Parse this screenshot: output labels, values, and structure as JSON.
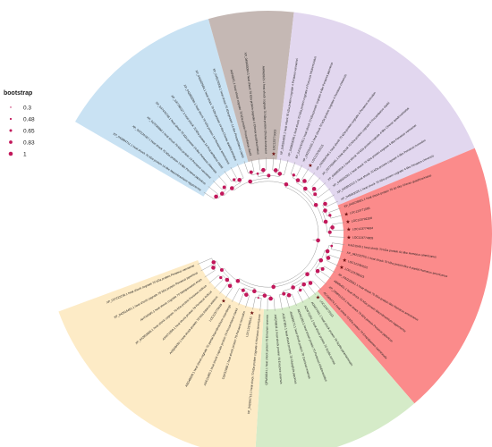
{
  "legend": {
    "title": "bootstrap",
    "items": [
      {
        "label": "0.3",
        "value": 0.3
      },
      {
        "label": "0.48",
        "value": 0.48
      },
      {
        "label": "0.65",
        "value": 0.65
      },
      {
        "label": "0.83",
        "value": 0.83
      },
      {
        "label": "1",
        "value": 1
      }
    ]
  },
  "colors": {
    "clade_blue": "#c9e2f3",
    "clade_taupe": "#c5b8b4",
    "clade_lavender": "#e2d7ef",
    "clade_red": "#fb8b8b",
    "clade_green": "#d5ebc8",
    "clade_yellow": "#fdebc6",
    "node": "#c2185b",
    "branch": "#9a9a9a",
    "star": "#6b0f0f"
  },
  "clades": [
    {
      "name": "blue",
      "color_key": "clade_blue"
    },
    {
      "name": "taupe",
      "color_key": "clade_taupe"
    },
    {
      "name": "lavender",
      "color_key": "clade_lavender"
    },
    {
      "name": "red",
      "color_key": "clade_red"
    },
    {
      "name": "green",
      "color_key": "clade_green"
    },
    {
      "name": "yellow",
      "color_key": "clade_yellow"
    }
  ],
  "tips": [
    {
      "label": "XP_042894711.1 heat shock 70 kDa protein 14-like Macrobrachium nipponense",
      "clade": "blue"
    },
    {
      "label": "XP_042224187.1 heat shock 70 kDa protein 14-like Penaeus japonicus",
      "clade": "blue"
    },
    {
      "label": "XP_027230890.1 heat shock 70 kDa protein 14 Penaeus vannamei",
      "clade": "blue"
    },
    {
      "label": "XP_047476748.1 heat shock 70 kDa protein 14-like Penaeus chinensis",
      "clade": "blue"
    },
    {
      "label": "XP_037796027.1 heat shock 70 kDa protein 14 Procambarus clarkii",
      "clade": "blue"
    },
    {
      "label": "XP_042882280.1 heat shock 70 kDa protein 14 Homarus americanus",
      "clade": "blue"
    },
    {
      "label": "XP_045602684.1 heat shock 70 kDa protein 14-like Cherax quadricarinatus",
      "clade": "blue"
    },
    {
      "label": "XP_045576009.1 heat shock 70 kDa protein 14-like Procambarus clarkii",
      "clade": "blue"
    },
    {
      "label": "AAN6651.1 heat shock cognate 70 kDa protein Procambarus clarkii",
      "clade": "taupe"
    },
    {
      "label": "XP_045603094.1 heat shock 70 kDa protein cognate 4 Cherax quadricarinatus",
      "clade": "taupe"
    },
    {
      "label": "AAW69621.1 heat shock cognate 70 kDa protein Cherax destructor",
      "clade": "taupe"
    },
    {
      "label": "LOC123770003",
      "clade": "taupe",
      "star": true
    },
    {
      "label": "XP_045594003.1 heat shock 70 kDa protein cognate 4 Penaeus vannamei",
      "clade": "lavender"
    },
    {
      "label": "XP_045603036.1 heat shock 70 kDa protein cognate 4 Portunus trituberculatus",
      "clade": "lavender"
    },
    {
      "label": "XP_047476735.1 heat shock 70 kDa protein cognate 4-like Penaeus japonicus",
      "clade": "lavender"
    },
    {
      "label": "XP_042224155.1 heat shock 70 kDa protein cognate 4 Penaeus chinensis",
      "clade": "lavender"
    },
    {
      "label": "LOC123792015",
      "clade": "lavender",
      "star": true
    },
    {
      "label": "XP_042894706.1 heat shock 70 kDa protein cognate 4 Penaeus monodon",
      "clade": "lavender"
    },
    {
      "label": "XP_037796091.1 heat shock 70 kDa protein cognate 4 Procambarus clarkii",
      "clade": "lavender"
    },
    {
      "label": "XP_045603010.1 heat shock 70 kDa protein cognate 4-like Cherax quadricarinatus",
      "clade": "lavender"
    },
    {
      "label": "XP_045604281.1 heat shock 70 kDa protein cognate 4-like Penaeus vannamei",
      "clade": "lavender"
    },
    {
      "label": "XP_045591012.1 heat shock 70 kDa protein cognate 4-like Penaeus monodon",
      "clade": "lavender"
    },
    {
      "label": "XP_045603025.1 heat shock 70 kDa protein cognate 4-like Penaeus chinensis",
      "clade": "lavender"
    },
    {
      "label": "XP_045578001.1 heat shock protein 70 A1-like Cherax quadricarinatus",
      "clade": "red"
    },
    {
      "label": "LOC123771095",
      "clade": "red",
      "star": true
    },
    {
      "label": "LOC123792208",
      "clade": "red",
      "star": true
    },
    {
      "label": "LOC123774694",
      "clade": "red",
      "star": true
    },
    {
      "label": "LOC123774809",
      "clade": "red",
      "star": true
    },
    {
      "label": "KAI21548.1 heat shock 70 kDa protein A1-like Homarus americanus",
      "clade": "red"
    },
    {
      "label": "XP_042220755.1 heat shock 70 kDa protein-like 4 partial Homarus americanus",
      "clade": "red"
    },
    {
      "label": "LOC123784522",
      "clade": "red",
      "star": true
    },
    {
      "label": "LOC123788423",
      "clade": "red",
      "star": true
    },
    {
      "label": "XP_042225561.1 heat shock 70 kDa protein-like Homarus americanus",
      "clade": "red"
    },
    {
      "label": "ABM0451.1 heat shock 70 kDa protein Macrobrachium nipponense",
      "clade": "red"
    },
    {
      "label": "XP_045601224.1 heat shock 70 kDa protein Penaeus japonicus",
      "clade": "red"
    },
    {
      "label": "ACG69474.1 heat shock 70 kDa protein 70 Exopalaemon carinicauda",
      "clade": "red"
    },
    {
      "label": "LOC123770113",
      "clade": "green",
      "star": true
    },
    {
      "label": "AGM77461.1 heat shock protein 70 Scylla paramamosain",
      "clade": "green"
    },
    {
      "label": "AOW70251.1 heat shock protein 70 Scylla serrata",
      "clade": "green"
    },
    {
      "label": "AKH41203.1 heat shock protein 70 Portunus trituberculatus",
      "clade": "green"
    },
    {
      "label": "ANQ99172.1 heat shock protein 70 Carcinus maenas",
      "clade": "green"
    },
    {
      "label": "ACE47881.1 heat shock protein 70 Charybdis japonica",
      "clade": "green"
    },
    {
      "label": "ANQ46811.1 heat shock protein 70 Eriocheir sinensis",
      "clade": "green"
    },
    {
      "label": "QPM36341.1 heat shock protein 70 Eriocheir sinensis",
      "clade": "green"
    },
    {
      "label": "XP_042894715.1 heat shock 70 kDa protein cognate 4 Homarus americanus",
      "clade": "yellow"
    },
    {
      "label": "LOC123788181",
      "clade": "yellow",
      "star": true
    },
    {
      "label": "CDP31956.1 heat shock protein 70 Penaeus monodon",
      "clade": "yellow"
    },
    {
      "label": "AOE11985.1 heat shock cognate protein 70 Procambarus clarkii",
      "clade": "yellow"
    },
    {
      "label": "ABG48826.1 heat shock cognate 70 partial Macrobrachium rosenbergii",
      "clade": "yellow"
    },
    {
      "label": "LOC123770016",
      "clade": "yellow",
      "star": true
    },
    {
      "label": "ANQ48439.1 heat shock protein 70 kDa Astacus astacus",
      "clade": "yellow"
    },
    {
      "label": "AAW71958.1 heat shock protein 70 Penaeus indicus",
      "clade": "yellow"
    },
    {
      "label": "XP_042902806.1 heat shock cognate 70 kDa protein Penaeus indicus",
      "clade": "yellow"
    },
    {
      "label": "AHY94595.1 heat shock cognate 70 Metapenaeus ensis",
      "clade": "yellow"
    },
    {
      "label": "XP_042916451.1 heat shock cognate 70 kDa protein Penaeus japonicus",
      "clade": "yellow"
    },
    {
      "label": "XP_027222236.1 heat shock cognate 70 kDa protein Penaeus vannamei",
      "clade": "yellow"
    }
  ],
  "bootstrap_values": [
    1,
    0.83,
    1,
    0.65,
    1,
    1,
    0.83,
    1,
    0.48,
    1,
    1,
    0.83,
    1,
    0.65,
    1,
    1,
    1,
    0.83,
    1,
    1,
    0.65,
    1,
    1,
    0.83,
    1,
    1,
    1,
    0.48,
    1,
    1,
    0.83,
    1,
    1,
    1,
    0.65,
    1,
    1,
    0.83,
    1,
    1,
    1,
    0.3,
    1,
    1,
    0.83,
    1,
    1,
    0.65,
    1,
    1,
    1,
    0.83,
    1,
    1,
    1
  ]
}
